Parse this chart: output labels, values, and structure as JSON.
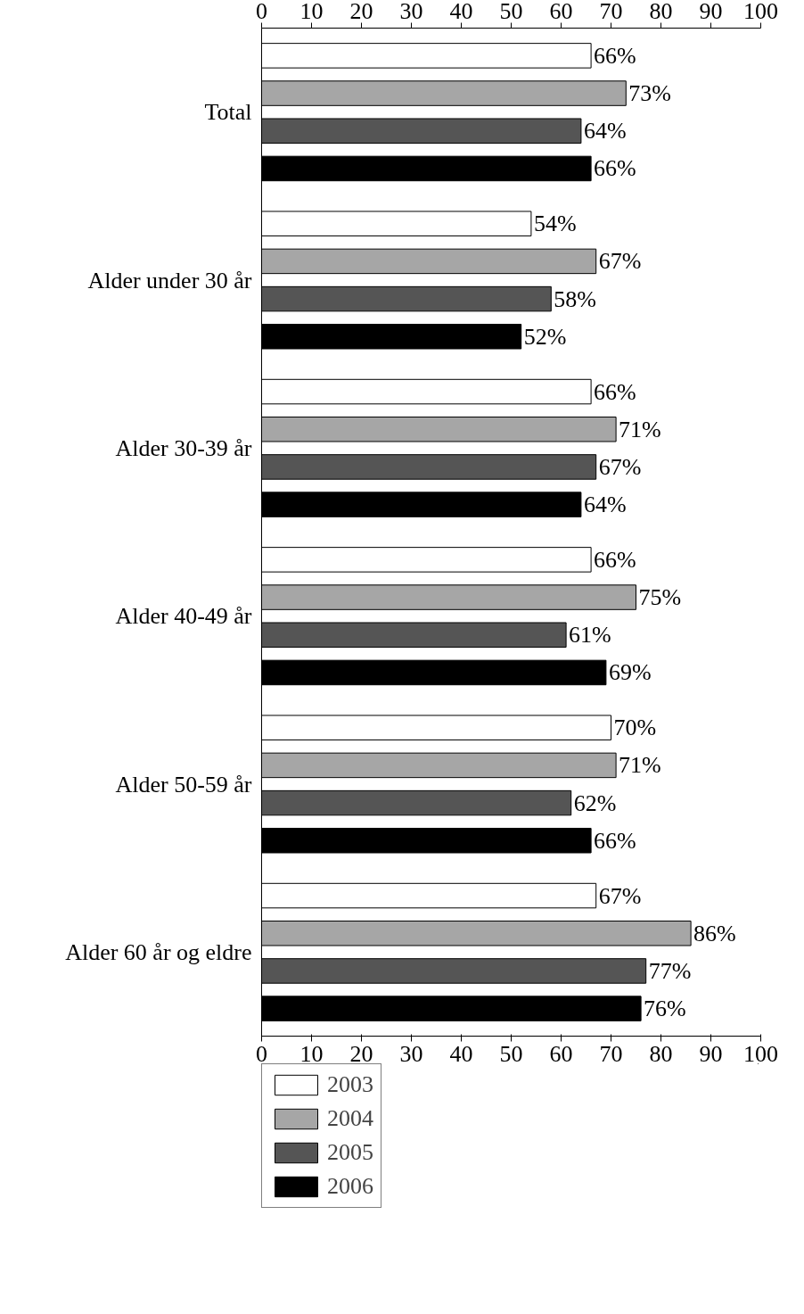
{
  "chart_data": {
    "type": "bar",
    "orientation": "horizontal",
    "categories": [
      "Total",
      "Alder under 30 år",
      "Alder 30-39 år",
      "Alder 40-49 år",
      "Alder 50-59 år",
      "Alder 60 år og eldre"
    ],
    "series": [
      {
        "name": "2003",
        "color": "#ffffff",
        "values": [
          66,
          54,
          66,
          66,
          70,
          67
        ],
        "value_labels": [
          "66%",
          "54%",
          "66%",
          "66%",
          "70%",
          "67%"
        ]
      },
      {
        "name": "2004",
        "color": "#a6a6a6",
        "values": [
          73,
          67,
          71,
          75,
          71,
          86
        ],
        "value_labels": [
          "73%",
          "67%",
          "71%",
          "75%",
          "71%",
          "86%"
        ]
      },
      {
        "name": "2005",
        "color": "#555555",
        "values": [
          64,
          58,
          67,
          61,
          62,
          77
        ],
        "value_labels": [
          "64%",
          "58%",
          "67%",
          "61%",
          "62%",
          "77%"
        ]
      },
      {
        "name": "2006",
        "color": "#000000",
        "values": [
          66,
          52,
          64,
          69,
          66,
          76
        ],
        "value_labels": [
          "66%",
          "52%",
          "64%",
          "69%",
          "66%",
          "76%"
        ]
      }
    ],
    "xlim": [
      0,
      100
    ],
    "xticks": [
      0,
      10,
      20,
      30,
      40,
      50,
      60,
      70,
      80,
      90,
      100
    ],
    "x2lim": [
      0,
      100
    ],
    "x2ticks": [
      0,
      10,
      20,
      30,
      40,
      50,
      60,
      70,
      80,
      90,
      100
    ],
    "grid": false,
    "legend": "bottom"
  }
}
